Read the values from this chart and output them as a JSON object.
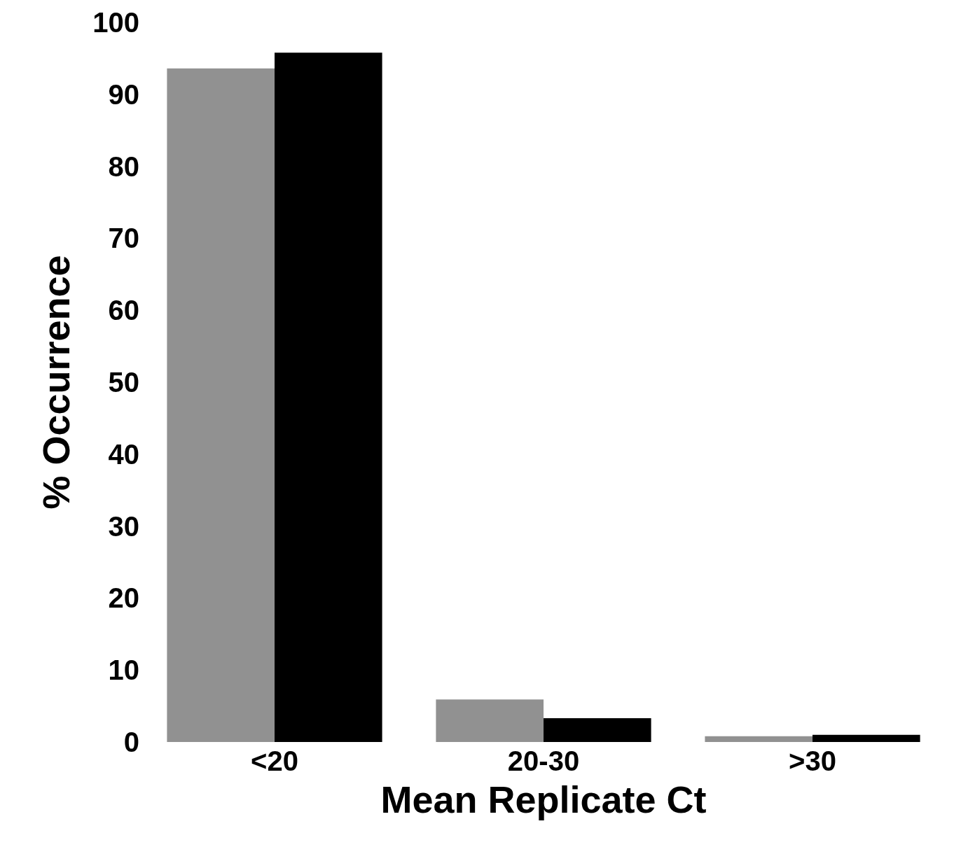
{
  "chart_data": {
    "type": "bar",
    "xlabel": "Mean Replicate Ct",
    "ylabel": "% Occurrence",
    "categories": [
      "<20",
      "20-30",
      ">30"
    ],
    "series": [
      {
        "color": "#919191",
        "values": [
          93.6,
          5.9,
          0.8
        ]
      },
      {
        "color": "#000000",
        "values": [
          95.8,
          3.3,
          1.0
        ]
      }
    ],
    "ylim": [
      0,
      100
    ],
    "yticks": [
      0,
      10,
      20,
      30,
      40,
      50,
      60,
      70,
      80,
      90,
      100
    ]
  }
}
